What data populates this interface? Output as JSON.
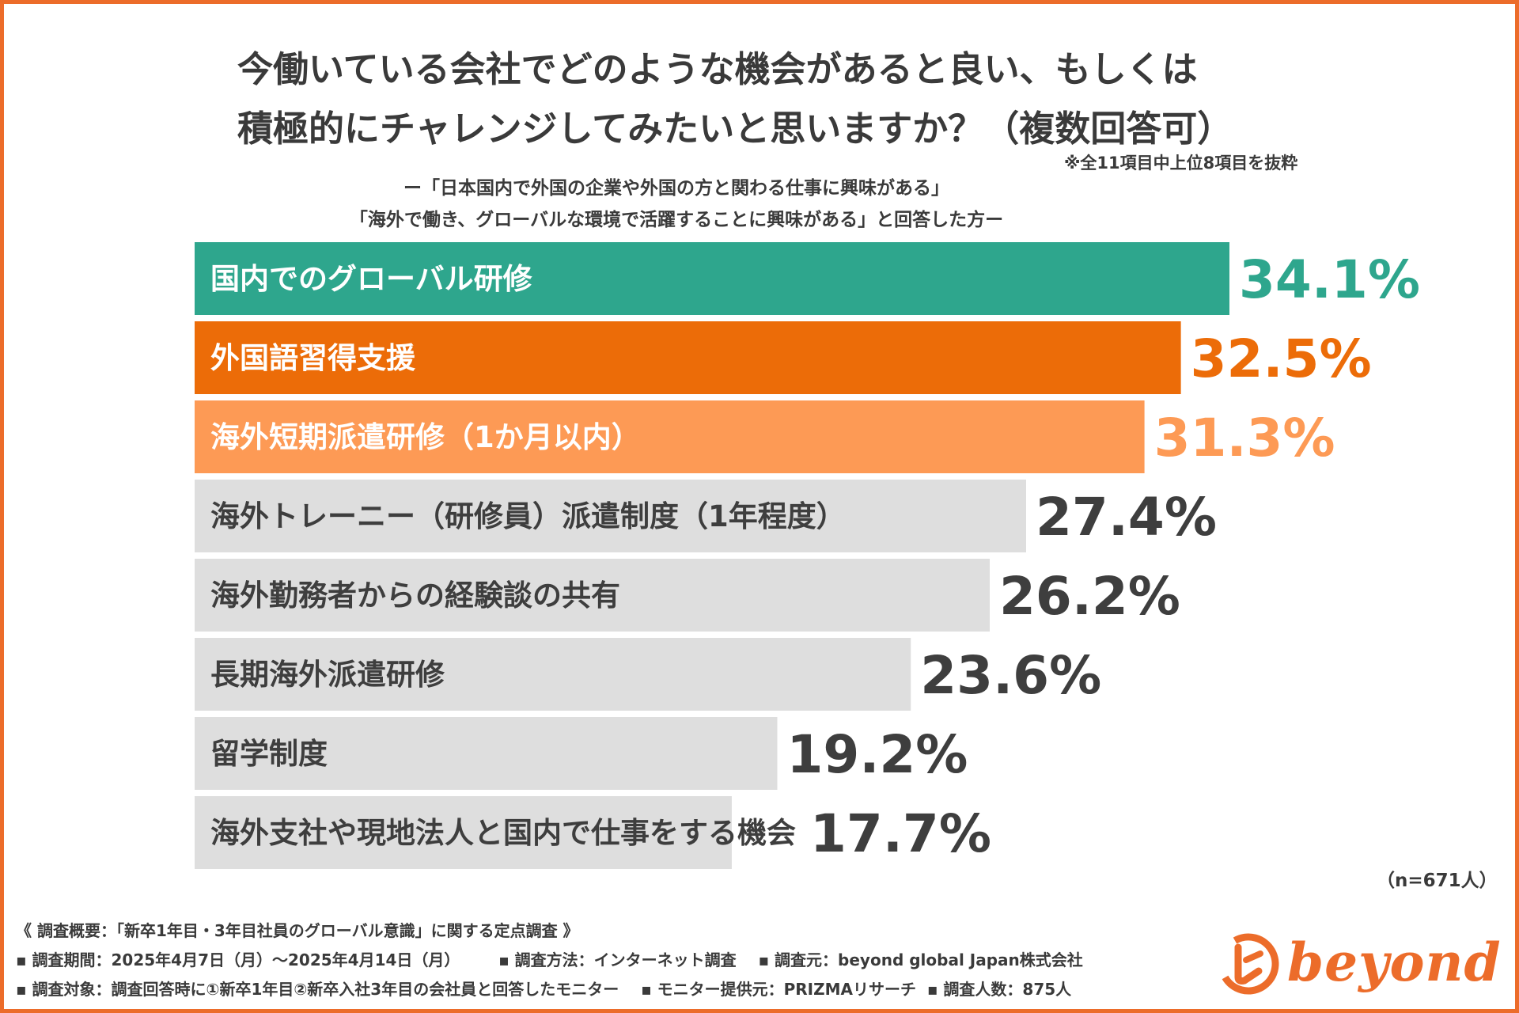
{
  "title_line1": "今働いている会社でどのような機会があると良い、もしくは",
  "title_line2": "積極的にチャレンジしてみたいと思いますか？（複数回答可）",
  "note_top": "※全11項目中上位8項目を抜粋",
  "subtitle_line1": "ー「日本国内で外国の企業や外国の方と関わる仕事に興味がある」",
  "subtitle_line2": "「海外で働き、グローバルな環境で活躍することに興味がある」と回答した方ー",
  "n_note": "（n=671人）",
  "colors": {
    "frame": "#ec6c2a",
    "teal": "#2ea68d",
    "orange_dark": "#ec6c08",
    "orange_light": "#fd9a55",
    "gray_bar": "#dedede",
    "gray_text": "#3e3e3e"
  },
  "chart_data": {
    "type": "bar",
    "orientation": "horizontal",
    "value_suffix": "%",
    "categories": [
      "国内でのグローバル研修",
      "外国語習得支援",
      "海外短期派遣研修（1か月以内）",
      "海外トレーニー（研修員）派遣制度（1年程度）",
      "海外勤務者からの経験談の共有",
      "長期海外派遣研修",
      "留学制度",
      "海外支社や現地法人と国内で仕事をする機会"
    ],
    "values": [
      34.1,
      32.5,
      31.3,
      27.4,
      26.2,
      23.6,
      19.2,
      17.7
    ],
    "value_labels": [
      "34.1%",
      "32.5%",
      "31.3%",
      "27.4%",
      "26.2%",
      "23.6%",
      "19.2%",
      "17.7%"
    ],
    "highlight": [
      "teal",
      "orange_dark",
      "orange_light",
      "gray",
      "gray",
      "gray",
      "gray",
      "gray"
    ],
    "xlim": [
      0,
      34.1
    ],
    "grid": false
  },
  "footer": {
    "line1": "《 調査概要：「新卒1年目・3年目社員のグローバル意識」に関する定点調査 》",
    "line2": "▪ 調査期間：2025年4月7日（月）～2025年4月14日（月）       ▪ 調査方法：インターネット調査    ▪ 調査元：beyond global Japan株式会社",
    "line3": "▪ 調査対象：調査回答時に①新卒1年目②新卒入社3年目の会社員と回答したモニター    ▪ モニター提供元：PRIZMAリサーチ  ▪ 調査人数：875人"
  },
  "logo": {
    "text": "beyond",
    "icon": "beyond-swirl-logo-icon"
  }
}
